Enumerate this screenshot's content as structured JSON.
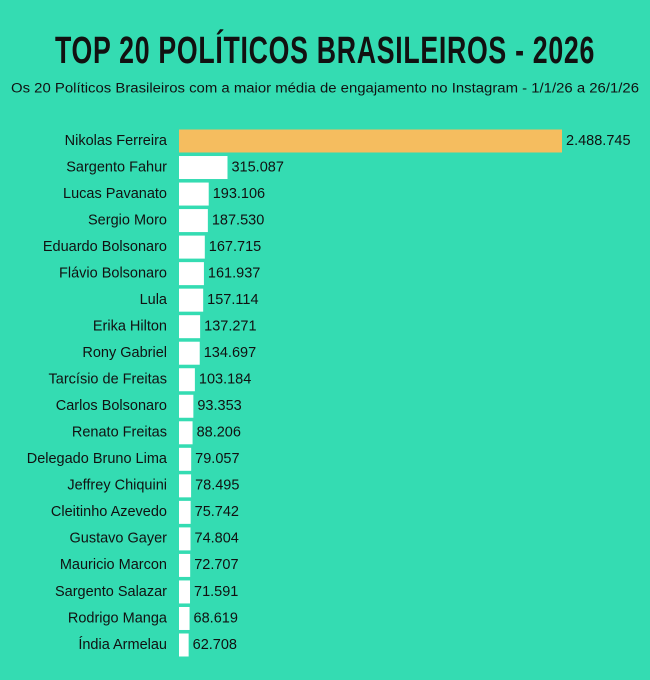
{
  "chart_data": {
    "type": "bar",
    "orientation": "horizontal",
    "title": "TOP 20 POLÍTICOS BRASILEIROS - 2026",
    "subtitle": "Os 20 Políticos Brasileiros com a maior média de engajamento no Instagram - 1/1/26 a 26/1/26",
    "categories": [
      "Nikolas Ferreira",
      "Sargento Fahur",
      "Lucas Pavanato",
      "Sergio Moro",
      "Eduardo Bolsonaro",
      "Flávio Bolsonaro",
      "Lula",
      "Erika Hilton",
      "Rony Gabriel",
      "Tarcísio de Freitas",
      "Carlos Bolsonaro",
      "Renato Freitas",
      "Delegado Bruno Lima",
      "Jeffrey Chiquini",
      "Cleitinho Azevedo",
      "Gustavo Gayer",
      "Mauricio Marcon",
      "Sargento Salazar",
      "Rodrigo Manga",
      "Índia Armelau"
    ],
    "values": [
      2488745,
      315087,
      193106,
      187530,
      167715,
      161937,
      157114,
      137271,
      134697,
      103184,
      93353,
      88206,
      79057,
      78495,
      75742,
      74804,
      72707,
      71591,
      68619,
      62708
    ],
    "value_labels": [
      "2.488.745",
      "315.087",
      "193.106",
      "187.530",
      "167.715",
      "161.937",
      "157.114",
      "137.271",
      "134.697",
      "103.184",
      "93.353",
      "88.206",
      "79.057",
      "78.495",
      "75.742",
      "74.804",
      "72.707",
      "71.591",
      "68.619",
      "62.708"
    ],
    "colors": [
      "#f5bd5f",
      "#ffffff",
      "#ffffff",
      "#ffffff",
      "#ffffff",
      "#ffffff",
      "#ffffff",
      "#ffffff",
      "#ffffff",
      "#ffffff",
      "#ffffff",
      "#ffffff",
      "#ffffff",
      "#ffffff",
      "#ffffff",
      "#ffffff",
      "#ffffff",
      "#ffffff",
      "#ffffff",
      "#ffffff"
    ]
  }
}
